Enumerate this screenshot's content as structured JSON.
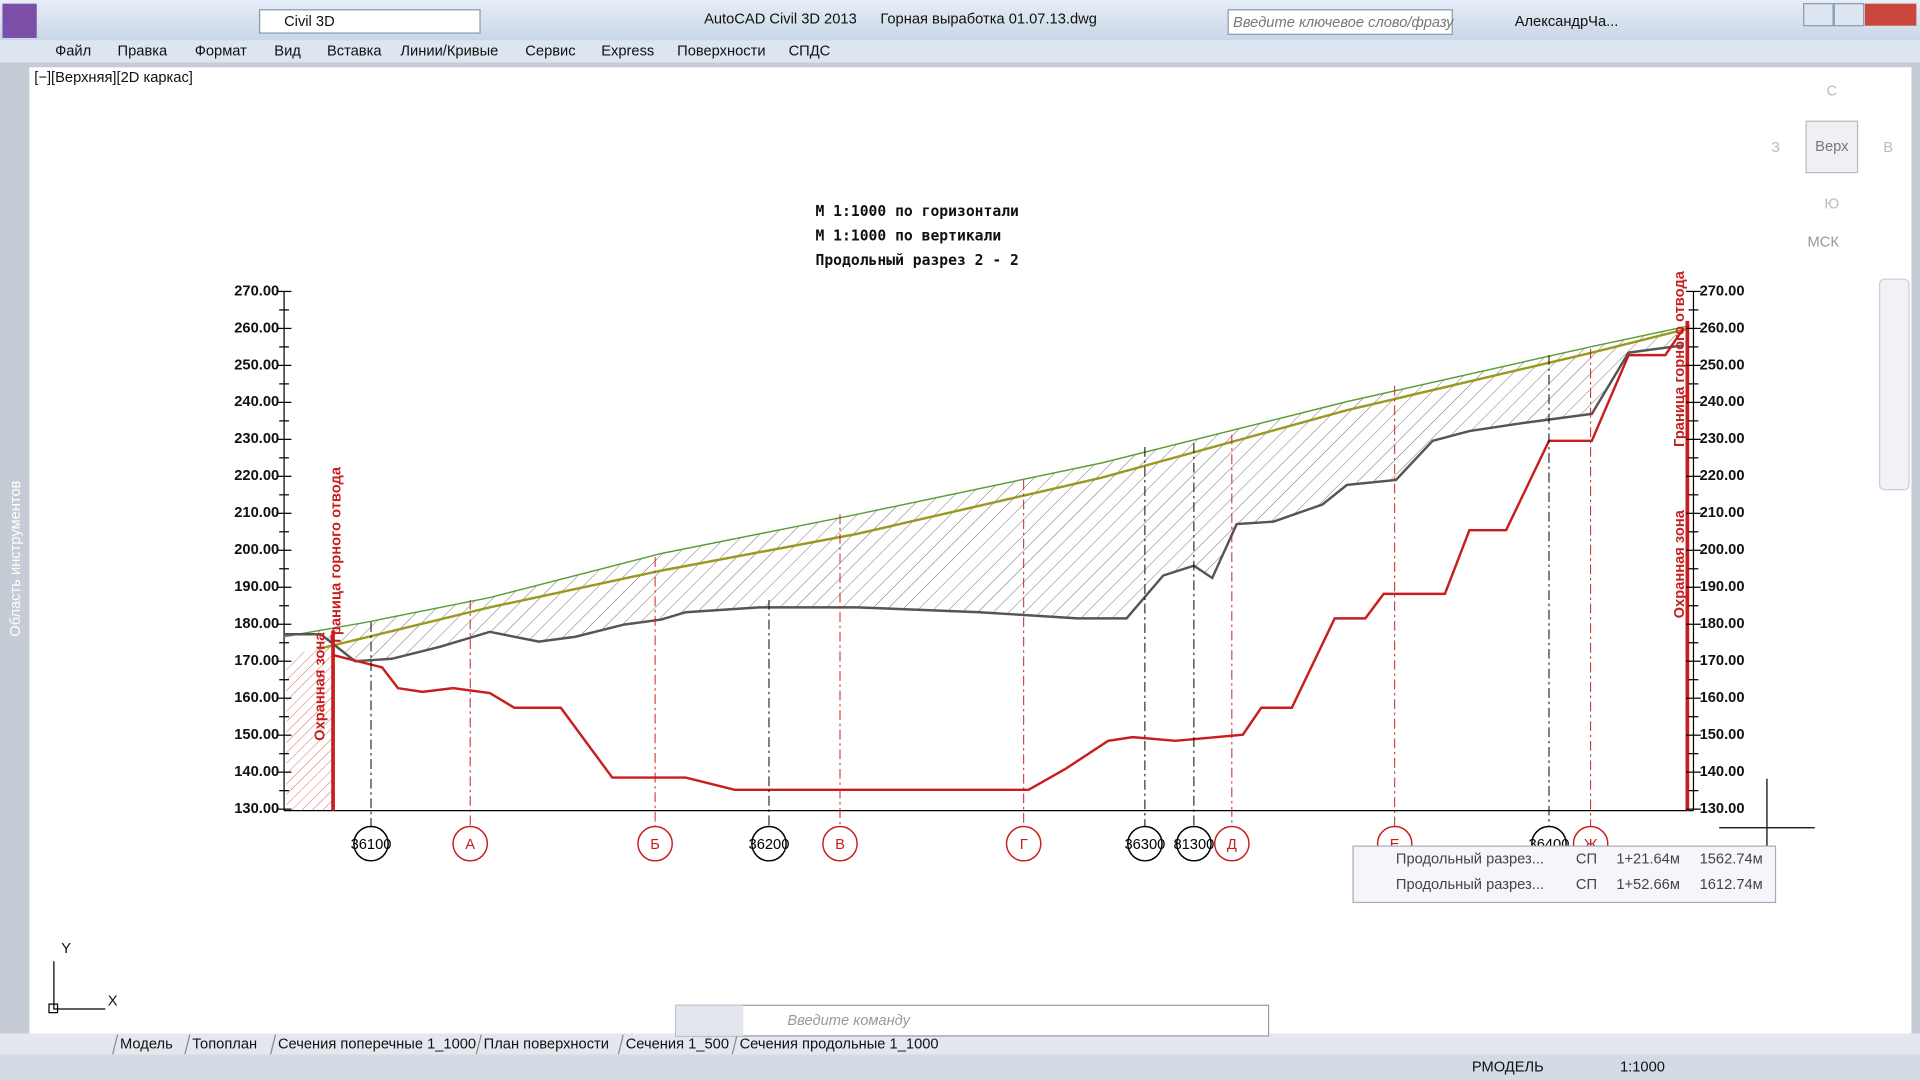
{
  "titlebar": {
    "app": "AutoCAD Civil 3D 2013",
    "file": "Горная выработка 01.07.13.dwg",
    "workspace": "Civil 3D",
    "search": "Введите ключевое слово/фразу",
    "user": "АлександрЧа..."
  },
  "menu": [
    "Файл",
    "Правка",
    "Формат",
    "Вид",
    "Вставка",
    "Линии/Кривые",
    "Сервис",
    "Express",
    "Поверхности",
    "СПДС"
  ],
  "viewport": {
    "label": "[−][Верхняя][2D каркас]",
    "side_panel": "Область инструментов"
  },
  "viewcube": {
    "north": "С",
    "west": "З",
    "top": "Верх",
    "east": "В",
    "south": "Ю",
    "ucs": "МСК"
  },
  "drawing": {
    "title_lines": [
      "М 1:1000 по горизонтали",
      "М 1:1000 по вертикали",
      "Продольный разрез 2 - 2"
    ],
    "elevations": [
      "270.00",
      "260.00",
      "250.00",
      "240.00",
      "230.00",
      "220.00",
      "210.00",
      "200.00",
      "190.00",
      "180.00",
      "170.00",
      "160.00",
      "150.00",
      "140.00",
      "130.00"
    ],
    "boundary_left": "Граница горного отвода",
    "zone_left": "Охранная зона",
    "boundary_right": "Граница горного отвода",
    "zone_right": "Охранная зона",
    "stations": [
      "36100",
      "А",
      "Б",
      "36200",
      "В",
      "Г",
      "36300",
      "81300",
      "Д",
      "Е",
      "36400",
      "Ж"
    ],
    "ucs_y": "Y",
    "ucs_x": "X"
  },
  "tooltip": {
    "rows": [
      [
        "Продольный разрез...",
        "СП",
        "1+21.64м",
        "1562.74м"
      ],
      [
        "Продольный разрез...",
        "СП",
        "1+52.66м",
        "1612.74м"
      ]
    ]
  },
  "command": {
    "placeholder": "Введите команду"
  },
  "tabs": [
    "Модель",
    "Топоплан",
    "Сечения поперечные 1_1000",
    "План поверхности",
    "Сечения 1_500",
    "Сечения продольные 1_1000"
  ],
  "status": {
    "mode": "РМОДЕЛЬ",
    "scale": "1:1000"
  }
}
